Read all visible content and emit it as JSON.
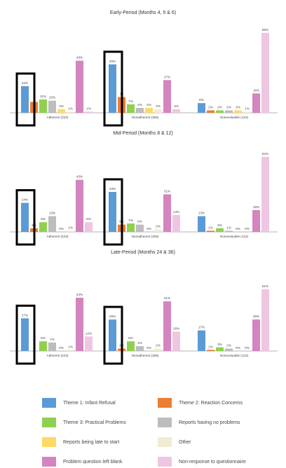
{
  "chart_data": [
    {
      "type": "bar",
      "title": "Early-Period (Months 4, 5 & 6)",
      "categories": [
        "Adherent (223)",
        "Nonadherent (306)",
        "Nonevaluable (123)"
      ],
      "series": [
        {
          "name": "Theme 1: Infant Refusal",
          "values": [
            22,
            40,
            8
          ]
        },
        {
          "name": "Theme 2: Reaction Concerns",
          "values": [
            9,
            13,
            2
          ]
        },
        {
          "name": "Theme 3: Practical Problems",
          "values": [
            11,
            7,
            2
          ]
        },
        {
          "name": "Reports having no problems",
          "values": [
            10,
            4,
            2
          ]
        },
        {
          "name": "Reports being late to start",
          "values": [
            3,
            4,
            2
          ]
        },
        {
          "name": "Other",
          "values": [
            1,
            3,
            1
          ]
        },
        {
          "name": "Problem question left blank",
          "values": [
            43,
            27,
            16
          ]
        },
        {
          "name": "Non-response to questionnaire",
          "values": [
            1,
            3,
            66
          ]
        }
      ],
      "labels": [
        [
          "22%",
          "",
          "11%",
          "10%",
          "3%",
          "1%",
          "43%",
          "1%"
        ],
        [
          "40%",
          "13",
          "7%",
          "4%",
          "4%",
          "3%",
          "27%",
          "3%"
        ],
        [
          "8%",
          "2%",
          "2%",
          "2%",
          "2%",
          "1%",
          "16%",
          "66%"
        ]
      ],
      "highlight_series": 0,
      "highlight_groups": [
        0,
        1
      ],
      "ylim": [
        0,
        70
      ]
    },
    {
      "type": "bar",
      "title": "Mid-Period (Months 8 & 12)",
      "categories": [
        "Adherent (223)",
        "Nonadherent (306)",
        "Nonevaluable (123)"
      ],
      "series": [
        {
          "name": "Theme 1: Infant Refusal",
          "values": [
            24,
            33,
            13
          ]
        },
        {
          "name": "Theme 2: Reaction Concerns",
          "values": [
            3,
            6,
            1
          ]
        },
        {
          "name": "Theme 3: Practical Problems",
          "values": [
            8,
            7,
            3
          ]
        },
        {
          "name": "Reports having no problems",
          "values": [
            13,
            6,
            1
          ]
        },
        {
          "name": "Reports being late to start",
          "values": [
            0,
            0,
            0
          ]
        },
        {
          "name": "Other",
          "values": [
            1,
            2,
            0
          ]
        },
        {
          "name": "Problem question left blank",
          "values": [
            43,
            31,
            18
          ]
        },
        {
          "name": "Non-response to questionnaire",
          "values": [
            8,
            14,
            62
          ]
        }
      ],
      "labels": [
        [
          "24%",
          "3%",
          "8%",
          "13%",
          "0%",
          "1%",
          "43%",
          "8%"
        ],
        [
          "33%",
          "6%",
          "7%",
          "6%",
          "0%",
          "2%",
          "31%",
          "14%"
        ],
        [
          "13%",
          "1%",
          "3%",
          "1%",
          "0%",
          "0%",
          "18%",
          "62%"
        ]
      ],
      "highlight_series": 0,
      "highlight_groups": [
        0,
        1
      ],
      "ylim": [
        0,
        70
      ]
    },
    {
      "type": "bar",
      "title": "Late-Period (Months 24 & 36)",
      "categories": [
        "Adherent (223)",
        "Nonadherent (306)",
        "Nonevaluable (123)"
      ],
      "series": [
        {
          "name": "Theme 1: Infant Refusal",
          "values": [
            27,
            26,
            17
          ]
        },
        {
          "name": "Theme 2: Reaction Concerns",
          "values": [
            0,
            2,
            1
          ]
        },
        {
          "name": "Theme 3: Practical Problems",
          "values": [
            8,
            8,
            3
          ]
        },
        {
          "name": "Reports having no problems",
          "values": [
            7,
            4,
            2
          ]
        },
        {
          "name": "Reports being late to start",
          "values": [
            0,
            0,
            0
          ]
        },
        {
          "name": "Other",
          "values": [
            1,
            2,
            0
          ]
        },
        {
          "name": "Problem question left blank",
          "values": [
            44,
            41,
            26
          ]
        },
        {
          "name": "Non-response to questionnaire",
          "values": [
            12,
            16,
            51
          ]
        }
      ],
      "labels": [
        [
          "27%",
          "",
          "8%",
          "7%",
          "0%",
          "1%",
          "44%",
          "12%"
        ],
        [
          "26%",
          "2%",
          "8%",
          "4%",
          "0%",
          "2%",
          "41%",
          "16%"
        ],
        [
          "17%",
          "1%",
          "3%",
          "2%",
          "0%",
          "0%",
          "26%",
          "51%"
        ]
      ],
      "highlight_series": 0,
      "highlight_groups": [
        0,
        1
      ],
      "ylim": [
        0,
        70
      ]
    }
  ],
  "colors": [
    "#5b9bd5",
    "#ed7d31",
    "#8fd14f",
    "#bdbdbd",
    "#ffd966",
    "#f2ebd2",
    "#d484bf",
    "#efc6e1"
  ],
  "legend": [
    {
      "label": "Theme  1: Infant Refusal",
      "color": "#5b9bd5"
    },
    {
      "label": "Theme 2: Reaction Concerns",
      "color": "#ed7d31"
    },
    {
      "label": "Theme 3: Practical Problems",
      "color": "#8fd14f"
    },
    {
      "label": "Reports having no problems",
      "color": "#bdbdbd"
    },
    {
      "label": "Reports being late to start",
      "color": "#ffd966"
    },
    {
      "label": "Other",
      "color": "#f2ebd2"
    },
    {
      "label": "Problem question left blank",
      "color": "#d484bf"
    },
    {
      "label": "Non-response to questionnaire",
      "color": "#efc6e1"
    }
  ]
}
